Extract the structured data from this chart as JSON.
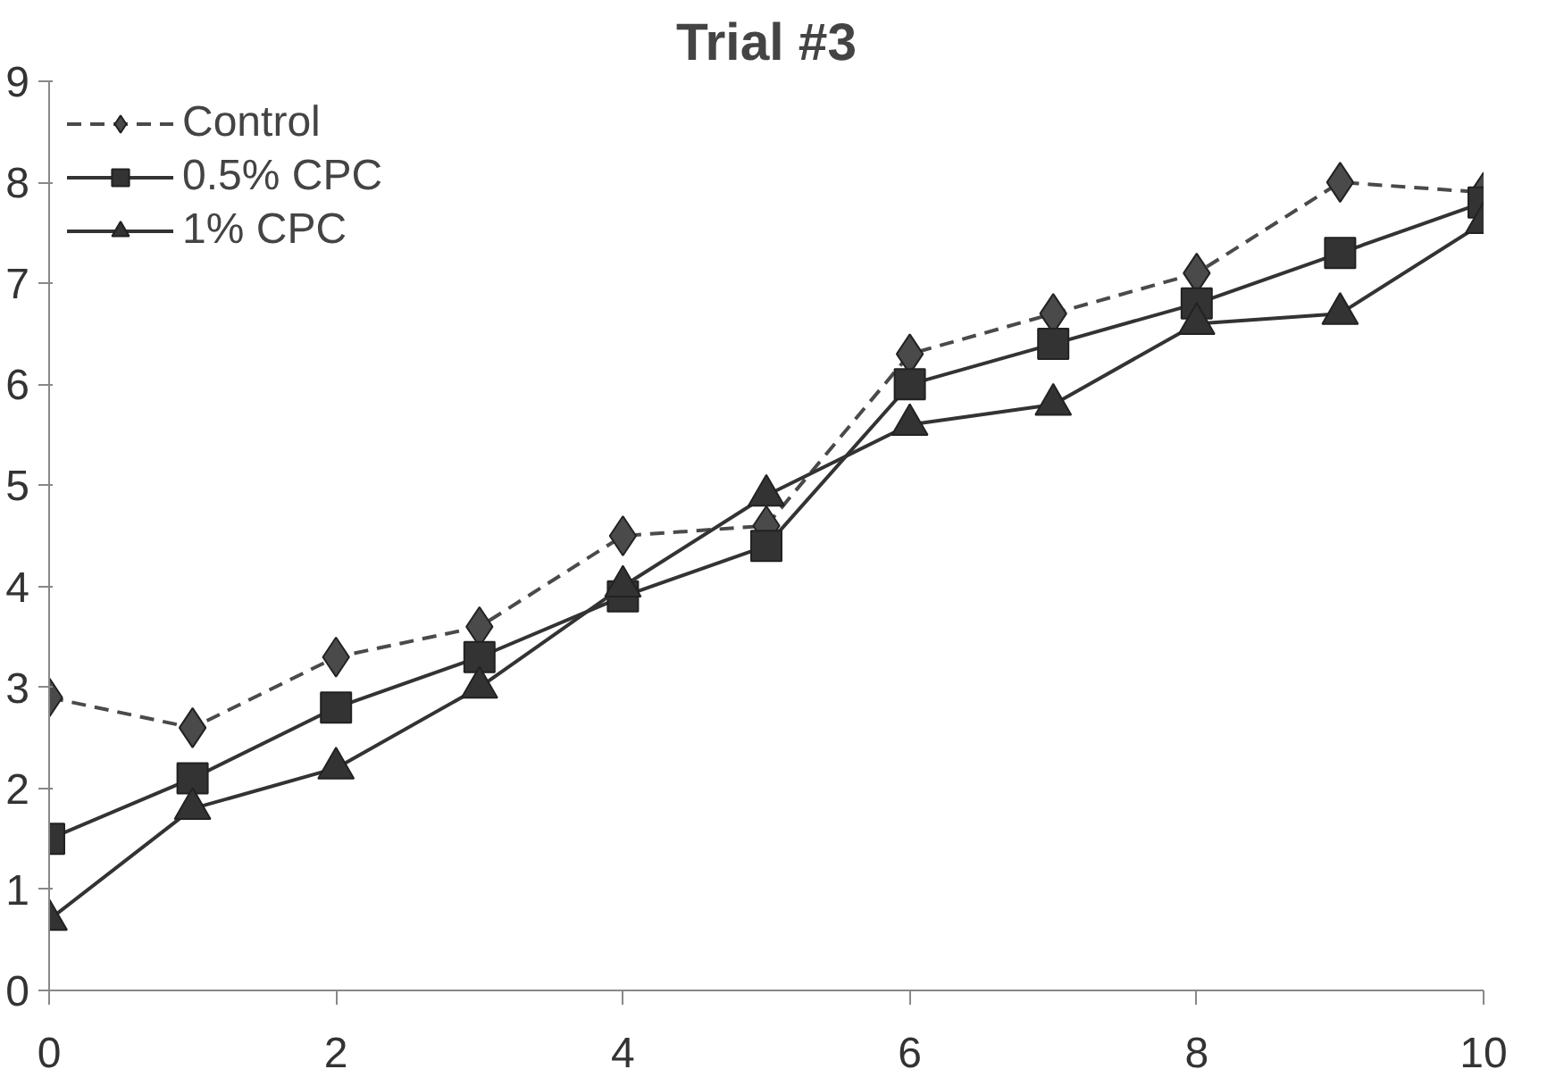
{
  "chart_data": {
    "type": "line",
    "title": "Trial #3",
    "x": [
      0,
      1,
      2,
      3,
      4,
      5,
      6,
      7,
      8,
      9,
      10
    ],
    "xlim": [
      0,
      10
    ],
    "xticks": [
      0,
      2,
      4,
      6,
      8,
      10
    ],
    "ylim": [
      0,
      9
    ],
    "yticks": [
      0,
      1,
      2,
      3,
      4,
      5,
      6,
      7,
      8,
      9
    ],
    "grid": false,
    "legend": "top left",
    "series": [
      {
        "name": "Control",
        "color": "#4a4a4a",
        "marker": "diamond",
        "line_style": "dashed",
        "values": [
          2.9,
          2.6,
          3.3,
          3.6,
          4.5,
          4.6,
          6.3,
          6.7,
          7.1,
          8.0,
          7.9
        ]
      },
      {
        "name": "0.5% CPC",
        "color": "#333333",
        "marker": "square",
        "line_style": "solid",
        "values": [
          1.5,
          2.1,
          2.8,
          3.3,
          3.9,
          4.4,
          6.0,
          6.4,
          6.8,
          7.3,
          7.8
        ]
      },
      {
        "name": "1% CPC",
        "color": "#333333",
        "marker": "triangle",
        "line_style": "solid",
        "values": [
          0.7,
          1.8,
          2.2,
          3.0,
          4.0,
          4.9,
          5.6,
          5.8,
          6.6,
          6.7,
          7.6
        ]
      }
    ]
  }
}
